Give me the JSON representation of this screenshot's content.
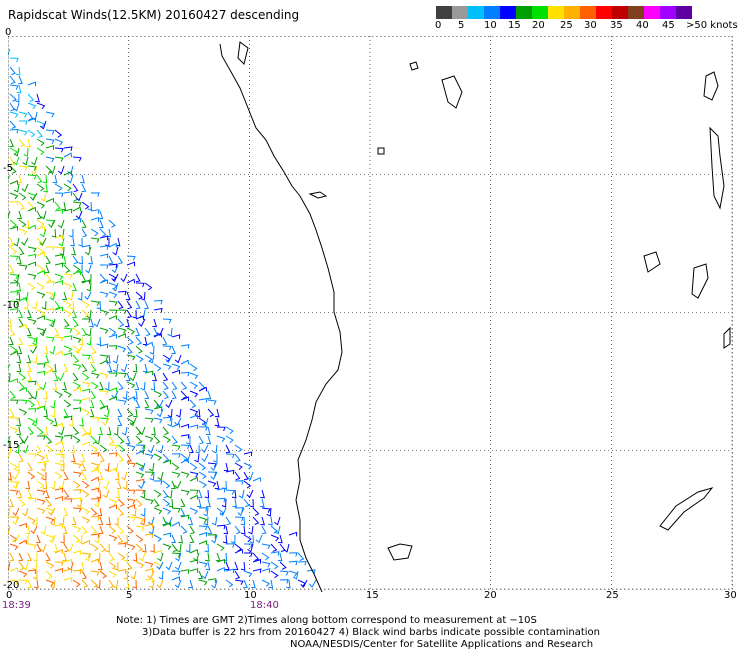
{
  "title": "Rapidscat Winds(12.5KM) 20160427 descending",
  "legend": {
    "colors": [
      "#404040",
      "#9a9a9a",
      "#00bfff",
      "#0080ff",
      "#0000ff",
      "#00a000",
      "#00e000",
      "#ffe000",
      "#ffb000",
      "#ff6000",
      "#ff0000",
      "#c00000",
      "#804020",
      "#ff00ff",
      "#a000ff",
      "#6000a0"
    ],
    "ticks": [
      "0",
      "5",
      "10",
      "15",
      "20",
      "25",
      "30",
      "35",
      "40",
      "45",
      ">50 knots"
    ],
    "unit": "knots"
  },
  "axes": {
    "x_ticks": [
      "0",
      "5",
      "10",
      "15",
      "20",
      "25",
      "30"
    ],
    "y_ticks": [
      "0",
      "-5",
      "-10",
      "-15",
      "-20"
    ],
    "x_range": [
      0,
      30
    ],
    "y_range": [
      0,
      -20
    ],
    "grid": "dotted"
  },
  "times": [
    "18:39",
    "18:40"
  ],
  "notes": [
    "Note: 1) Times are GMT 2)Times along bottom correspond to measurement at −10S",
    "3)Data buffer is 22 hrs from 20160427 4) Black wind barbs indicate possible contamination",
    "NOAA/NESDIS/Center for Satellite Applications and Research"
  ]
}
